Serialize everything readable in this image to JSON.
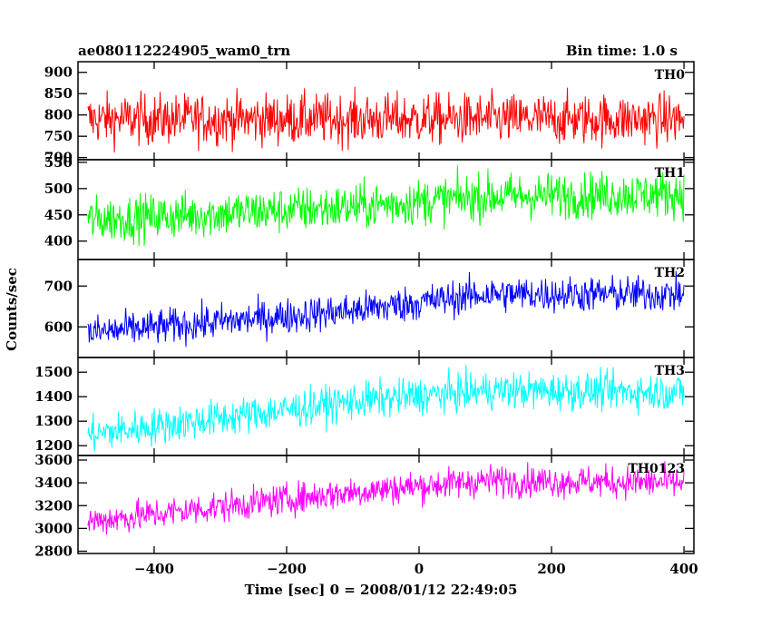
{
  "header": {
    "source_label": "ae080112224905_wam0_trn",
    "bin_time_label": "Bin time: 1.0 s"
  },
  "chart_data": {
    "type": "line",
    "xlabel": "Time [sec] 0 = 2008/01/12 22:49:05",
    "ylabel": "Counts/sec",
    "xlim": [
      -515,
      415
    ],
    "x_ticks": [
      -400,
      -200,
      0,
      200,
      400
    ],
    "x_tick_labels": [
      "−400",
      "−200",
      "0",
      "200",
      "400"
    ],
    "bin_seconds": 1.0,
    "x_start": -500,
    "x_end": 400,
    "grid": false,
    "panels": [
      {
        "name": "TH0",
        "color": "#ff0000",
        "ylim": [
          695,
          925
        ],
        "yticks": [
          700,
          750,
          800,
          850,
          900
        ],
        "trend": [
          [
            -500,
            790
          ],
          [
            400,
            790
          ]
        ],
        "noise": 30
      },
      {
        "name": "TH1",
        "color": "#00ff00",
        "ylim": [
          365,
          555
        ],
        "yticks": [
          400,
          450,
          500,
          550
        ],
        "trend": [
          [
            -500,
            440
          ],
          [
            -100,
            465
          ],
          [
            100,
            485
          ],
          [
            400,
            490
          ]
        ],
        "noise": 22
      },
      {
        "name": "TH2",
        "color": "#0000ff",
        "ylim": [
          525,
          765
        ],
        "yticks": [
          600,
          700
        ],
        "trend": [
          [
            -500,
            585
          ],
          [
            -100,
            640
          ],
          [
            100,
            680
          ],
          [
            400,
            680
          ]
        ],
        "noise": 22
      },
      {
        "name": "TH3",
        "color": "#00ffff",
        "ylim": [
          1160,
          1560
        ],
        "yticks": [
          1200,
          1300,
          1400,
          1500
        ],
        "trend": [
          [
            -500,
            1245
          ],
          [
            -100,
            1380
          ],
          [
            100,
            1425
          ],
          [
            400,
            1420
          ]
        ],
        "noise": 38
      },
      {
        "name": "TH0123",
        "color": "#ff00ff",
        "ylim": [
          2780,
          3640
        ],
        "yticks": [
          2800,
          3000,
          3200,
          3400,
          3600
        ],
        "trend": [
          [
            -500,
            3060
          ],
          [
            -100,
            3320
          ],
          [
            100,
            3420
          ],
          [
            400,
            3400
          ]
        ],
        "noise": 70
      }
    ]
  }
}
